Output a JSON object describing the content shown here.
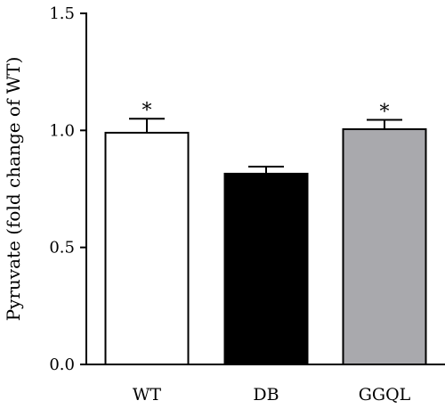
{
  "chart_data": {
    "type": "bar",
    "title": "",
    "xlabel": "",
    "ylabel": "Pyruvate (fold change of WT)",
    "ylim": [
      0,
      1.5
    ],
    "yticks": [
      "0.0",
      "0.5",
      "1.0",
      "1.5"
    ],
    "ytick_values": [
      0,
      0.5,
      1.0,
      1.5
    ],
    "categories": [
      "WT",
      "DB",
      "GGQL"
    ],
    "values": [
      0.99,
      0.815,
      1.005
    ],
    "errors": [
      0.06,
      0.03,
      0.04
    ],
    "annotations": [
      "*",
      "",
      "*"
    ],
    "bar_colors": [
      "#ffffff",
      "#000000",
      "#a9a9ad"
    ],
    "bar_edge_color": "#000000",
    "grid": false,
    "legend": "none"
  }
}
